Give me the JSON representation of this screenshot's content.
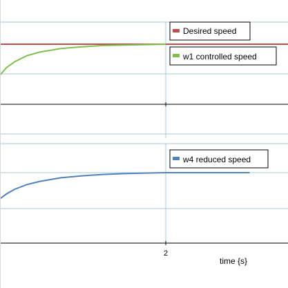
{
  "chart_data": [
    {
      "type": "line",
      "grid": true,
      "legend_position": "top-right",
      "series": [
        {
          "name": "Desired speed",
          "color": "#c0504d",
          "x": [
            0.0,
            3.0
          ],
          "y": [
            1.0,
            1.0
          ]
        },
        {
          "name": "w1 controlled speed",
          "color": "#7cc04b",
          "x": [
            0.0,
            0.1,
            0.2,
            0.35,
            0.5,
            0.75,
            1.0,
            1.25,
            1.5,
            1.75,
            2.0
          ],
          "y": [
            0.62,
            0.73,
            0.8,
            0.87,
            0.91,
            0.95,
            0.97,
            0.985,
            0.99,
            0.995,
            1.0
          ]
        }
      ]
    },
    {
      "type": "line",
      "grid": true,
      "legend_position": "top-right",
      "xlabel": "time {s}",
      "xticks": [
        "2"
      ],
      "series": [
        {
          "name": "w4 reduced speed",
          "color": "#4f81bd",
          "x": [
            0.0,
            0.1,
            0.2,
            0.35,
            0.5,
            0.75,
            1.0,
            1.25,
            1.5,
            1.75,
            2.0,
            2.5,
            3.0
          ],
          "y": [
            0.3,
            0.46,
            0.58,
            0.7,
            0.78,
            0.87,
            0.92,
            0.955,
            0.975,
            0.99,
            1.0,
            1.0,
            1.0
          ]
        }
      ]
    }
  ]
}
